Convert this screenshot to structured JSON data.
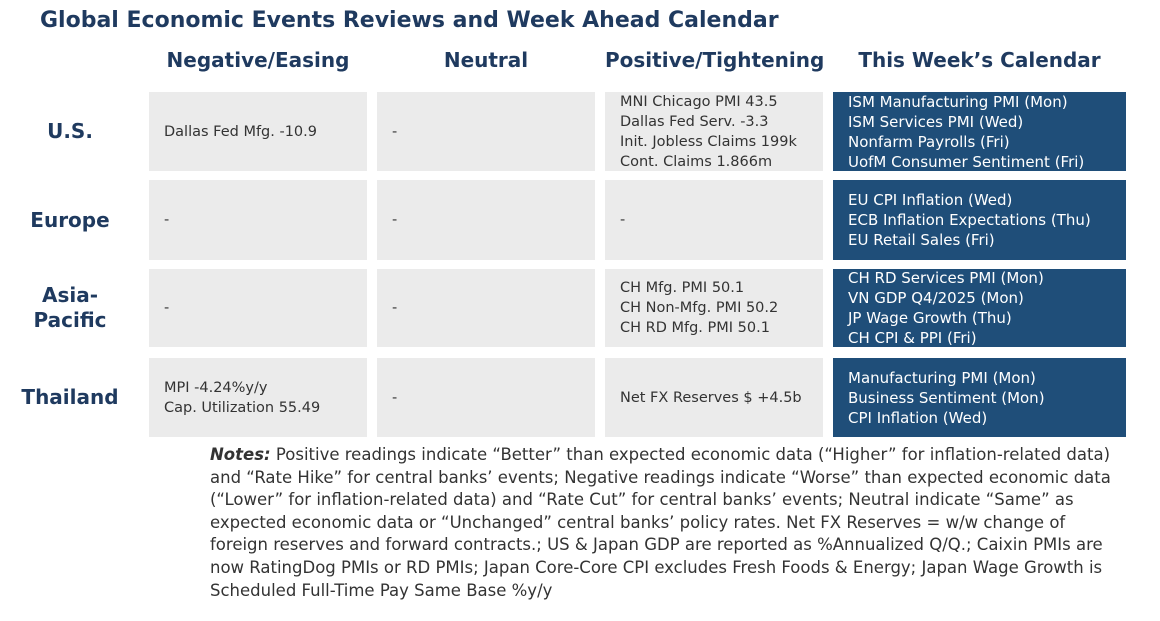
{
  "title": "Global Economic Events Reviews and Week Ahead Calendar",
  "columns": [
    "Negative/Easing",
    "Neutral",
    "Positive/Tightening",
    "This Week’s Calendar"
  ],
  "rows": [
    {
      "label": [
        "U.S."
      ],
      "cells": [
        [
          "Dallas Fed Mfg. -10.9"
        ],
        [
          "-"
        ],
        [
          "MNI Chicago PMI 43.5",
          "Dallas Fed Serv. -3.3",
          "Init. Jobless Claims 199k",
          "Cont. Claims 1.866m"
        ],
        [
          "ISM Manufacturing PMI (Mon)",
          "ISM Services PMI (Wed)",
          "Nonfarm Payrolls (Fri)",
          "UofM Consumer Sentiment (Fri)"
        ]
      ]
    },
    {
      "label": [
        "Europe"
      ],
      "cells": [
        [
          "-"
        ],
        [
          "-"
        ],
        [
          "-"
        ],
        [
          "EU CPI Inflation (Wed)",
          "ECB Inflation Expectations (Thu)",
          "EU Retail Sales (Fri)"
        ]
      ]
    },
    {
      "label": [
        "Asia-",
        "Pacific"
      ],
      "cells": [
        [
          "-"
        ],
        [
          "-"
        ],
        [
          "CH Mfg. PMI 50.1",
          "CH Non-Mfg. PMI 50.2",
          "CH RD Mfg. PMI 50.1"
        ],
        [
          "CH RD Services PMI (Mon)",
          "VN GDP Q4/2025 (Mon)",
          "JP Wage Growth (Thu)",
          "CH CPI & PPI (Fri)"
        ]
      ]
    },
    {
      "label": [
        "Thailand"
      ],
      "cells": [
        [
          "MPI -4.24%y/y",
          "Cap. Utilization 55.49"
        ],
        [
          "-"
        ],
        [
          "Net FX Reserves $ +4.5b"
        ],
        [
          "Manufacturing PMI (Mon)",
          "Business Sentiment (Mon)",
          "CPI Inflation (Wed)"
        ]
      ]
    }
  ],
  "notes": {
    "label": "Notes:",
    "text": "Positive readings indicate “Better” than expected economic data (“Higher” for inflation-related data) and “Rate Hike” for central banks’ events; Negative readings indicate “Worse” than expected economic data (“Lower” for inflation-related data) and “Rate Cut” for central banks’ events; Neutral indicate “Same” as expected economic data or “Unchanged” central banks’ policy rates. Net FX Reserves = w/w change of foreign reserves and forward contracts.; US & Japan GDP are reported as %Annualized Q/Q.; Caixin PMIs are now RatingDog PMIs or RD PMIs; Japan Core-Core CPI excludes Fresh Foods & Energy; Japan Wage Growth is Scheduled Full-Time Pay Same Base %y/y"
  }
}
